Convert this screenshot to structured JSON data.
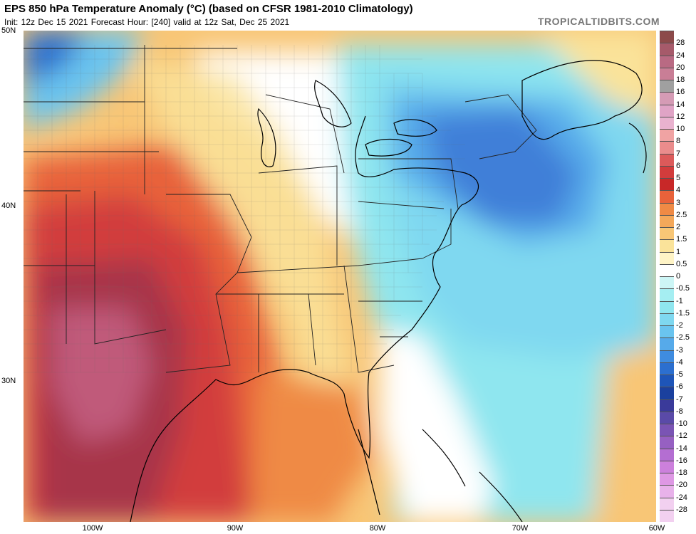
{
  "header": {
    "title": "EPS 850 hPa Temperature Anomaly (°C) (based on CFSR 1981-2010 Climatology)",
    "subtitle": "Init: 12z Dec 15 2021   Forecast Hour: [240]   valid at 12z Sat, Dec 25 2021",
    "credit": "TROPICALTIDBITS.COM"
  },
  "axes": {
    "lat_labels": [
      "50N",
      "40N",
      "30N"
    ],
    "lon_labels": [
      "100W",
      "90W",
      "80W",
      "70W",
      "60W"
    ]
  },
  "colorbar": {
    "labels": [
      "28",
      "24",
      "20",
      "18",
      "16",
      "14",
      "12",
      "10",
      "8",
      "7",
      "6",
      "5",
      "4",
      "3",
      "2.5",
      "2",
      "1.5",
      "1",
      "0.5",
      "0",
      "-0.5",
      "-1",
      "-1.5",
      "-2",
      "-2.5",
      "-3",
      "-4",
      "-5",
      "-6",
      "-7",
      "-8",
      "-10",
      "-12",
      "-14",
      "-16",
      "-18",
      "-20",
      "-24",
      "-28"
    ],
    "colors": [
      "#8c4a4a",
      "#a65a6a",
      "#b96a83",
      "#c97e96",
      "#a0a0a0",
      "#d59bb5",
      "#e0a4c6",
      "#e9b2cf",
      "#f0a3a3",
      "#ea8c8c",
      "#dc5a5a",
      "#d23c3c",
      "#c82828",
      "#e8623a",
      "#ef8a45",
      "#f4a85a",
      "#f8c676",
      "#fae39a",
      "#fff4c6",
      "#ffffff",
      "#cdf6f6",
      "#a5eef2",
      "#8fe6ef",
      "#7fd8f0",
      "#6ac4ef",
      "#56aaea",
      "#3f8ce0",
      "#2c6fcf",
      "#1e55b8",
      "#1b409e",
      "#3a3a9a",
      "#5a4aa8",
      "#7a54b4",
      "#9660c2",
      "#b46ed2",
      "#cc80dc",
      "#de98e4",
      "#e8b2ea",
      "#f2d0f0"
    ]
  },
  "map": {
    "legend_colors": {
      "very_warm": "#9e2f45",
      "warm": "#d0392f",
      "mild_warm": "#ee8a4a",
      "slight_warm": "#f6d08a",
      "neutral": "#ffffff",
      "slight_cold": "#8fe6ef",
      "cold": "#56aaea",
      "very_cold": "#3f7fd8",
      "land_lines": "#555555",
      "coast": "#000000"
    }
  }
}
